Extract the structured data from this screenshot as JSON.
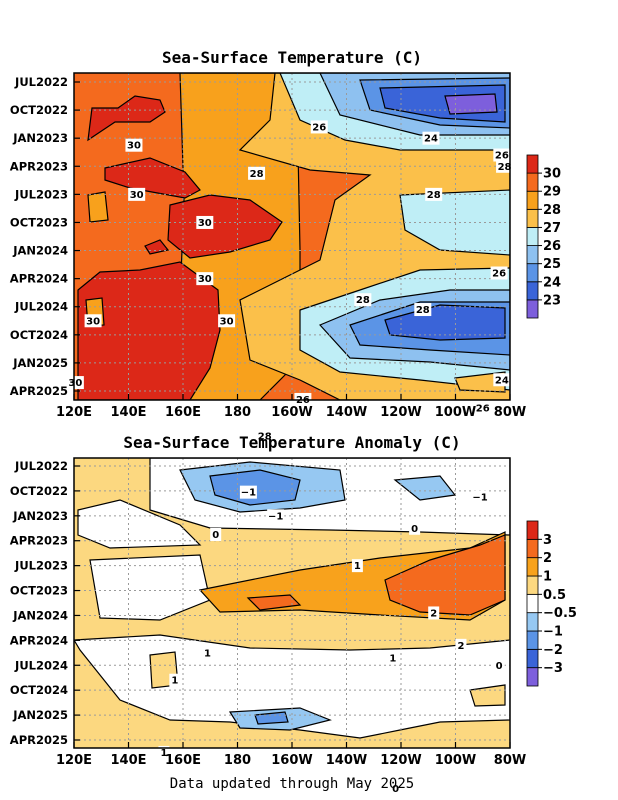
{
  "footer": "Data updated through May 2025",
  "chart_data": [
    {
      "type": "heatmap",
      "title": "Sea-Surface Temperature (C)",
      "x_ticks": [
        "120E",
        "140E",
        "160E",
        "180",
        "160W",
        "140W",
        "120W",
        "100W",
        "80W"
      ],
      "y_ticks": [
        "JUL2022",
        "OCT2022",
        "JAN2023",
        "APR2023",
        "JUL2023",
        "OCT2023",
        "JAN2024",
        "APR2024",
        "JUL2024",
        "OCT2024",
        "JAN2025",
        "APR2025"
      ],
      "colorbar": {
        "labels": [
          "23",
          "24",
          "25",
          "26",
          "27",
          "28",
          "29",
          "30"
        ],
        "colors": [
          "#7d5fdc",
          "#3a64d8",
          "#5b94e6",
          "#8ec1f0",
          "#bfeef6",
          "#fbc04a",
          "#f8a11c",
          "#f46a1e",
          "#dc2818"
        ]
      },
      "contour_labels": [
        {
          "text": "30",
          "lon": 142,
          "t": 2.25
        },
        {
          "text": "30",
          "lon": 143,
          "t": 4.0
        },
        {
          "text": "30",
          "lon": 168,
          "t": 5.0
        },
        {
          "text": "30",
          "lon": 168,
          "t": 7.0
        },
        {
          "text": "30",
          "lon": 127,
          "t": 8.5
        },
        {
          "text": "30",
          "lon": 176,
          "t": 8.5
        },
        {
          "text": "30",
          "lon": 120.5,
          "t": 10.7
        },
        {
          "text": "28",
          "lon": 187,
          "t": 3.25
        },
        {
          "text": "28",
          "lon": 252,
          "t": 4.0
        },
        {
          "text": "28",
          "lon": 226,
          "t": 7.75
        },
        {
          "text": "28",
          "lon": 248,
          "t": 8.1
        },
        {
          "text": "28",
          "lon": 190,
          "t": 12.6
        },
        {
          "text": "28",
          "lon": 278,
          "t": 3.0
        },
        {
          "text": "26",
          "lon": 210,
          "t": 1.6
        },
        {
          "text": "26",
          "lon": 277,
          "t": 2.6
        },
        {
          "text": "26",
          "lon": 276,
          "t": 6.8
        },
        {
          "text": "26",
          "lon": 204,
          "t": 11.3
        },
        {
          "text": "26",
          "lon": 270,
          "t": 11.6
        },
        {
          "text": "24",
          "lon": 251,
          "t": 2.0
        },
        {
          "text": "24",
          "lon": 277,
          "t": 10.6
        }
      ]
    },
    {
      "type": "heatmap",
      "title": "Sea-Surface Temperature Anomaly (C)",
      "x_ticks": [
        "120E",
        "140E",
        "160E",
        "180",
        "160W",
        "140W",
        "120W",
        "100W",
        "80W"
      ],
      "y_ticks": [
        "JUL2022",
        "OCT2022",
        "JAN2023",
        "APR2023",
        "JUL2023",
        "OCT2023",
        "JAN2024",
        "APR2024",
        "JUL2024",
        "OCT2024",
        "JAN2025",
        "APR2025"
      ],
      "colorbar": {
        "labels": [
          "−3",
          "−2",
          "−1",
          "−0.5",
          "0.5",
          "1",
          "2",
          "3"
        ],
        "colors": [
          "#7d5fdc",
          "#3a64d8",
          "#5b94e6",
          "#96c8f2",
          "#ffffff",
          "#fcd880",
          "#f8a21c",
          "#f46a1e",
          "#dc2818"
        ]
      },
      "contour_labels": [
        {
          "text": "−1",
          "lon": 184,
          "t": 1.05
        },
        {
          "text": "−1",
          "lon": 194,
          "t": 2.0
        },
        {
          "text": "−1",
          "lon": 269,
          "t": 1.25
        },
        {
          "text": "0",
          "lon": 172,
          "t": 2.75
        },
        {
          "text": "0",
          "lon": 245,
          "t": 2.5
        },
        {
          "text": "0",
          "lon": 276,
          "t": 8.0
        },
        {
          "text": "0",
          "lon": 238,
          "t": 12.95
        },
        {
          "text": "1",
          "lon": 224,
          "t": 4.0
        },
        {
          "text": "1",
          "lon": 169,
          "t": 7.5
        },
        {
          "text": "1",
          "lon": 237,
          "t": 7.7
        },
        {
          "text": "1",
          "lon": 157,
          "t": 8.6
        },
        {
          "text": "1",
          "lon": 153,
          "t": 11.5
        },
        {
          "text": "2",
          "lon": 252,
          "t": 5.9
        },
        {
          "text": "2",
          "lon": 262,
          "t": 7.2
        }
      ]
    }
  ]
}
